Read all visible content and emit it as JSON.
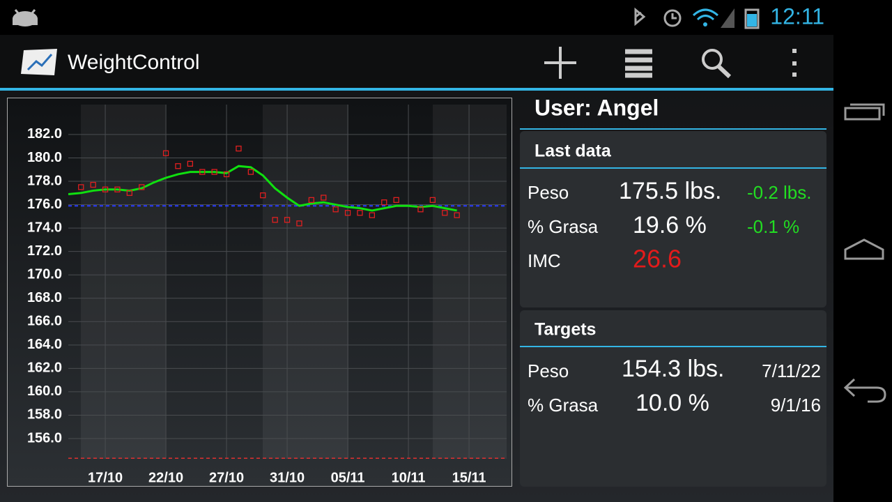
{
  "status_bar": {
    "time": "12:11"
  },
  "action_bar": {
    "title": "WeightControl"
  },
  "chart_data": {
    "type": "line",
    "series": [
      {
        "color": "#10e010",
        "x": [
          -3.05,
          -2,
          -1,
          0,
          1,
          2,
          3,
          4,
          5,
          6,
          7,
          8,
          9,
          10,
          11,
          12,
          13,
          14,
          15,
          16,
          17,
          18,
          19,
          20,
          21,
          22,
          23,
          24,
          25,
          26,
          27,
          28,
          29
        ],
        "values": [
          176.9,
          177.0,
          177.2,
          177.3,
          177.3,
          177.2,
          177.4,
          177.9,
          178.3,
          178.6,
          178.8,
          178.8,
          178.8,
          178.7,
          179.3,
          179.2,
          178.5,
          177.4,
          176.6,
          175.9,
          176.1,
          176.2,
          176.0,
          175.8,
          175.7,
          175.5,
          175.7,
          175.9,
          175.9,
          175.8,
          175.9,
          175.7,
          175.5
        ]
      },
      {
        "type": "scatter",
        "color": "#e02020",
        "x": [
          -2,
          -1,
          0,
          1,
          2,
          3,
          5,
          6,
          7,
          8,
          9,
          10,
          11,
          12,
          13,
          14,
          15,
          16,
          17,
          18,
          19,
          20,
          21,
          22,
          23,
          24,
          26,
          27,
          28,
          29
        ],
        "values": [
          177.5,
          177.7,
          177.3,
          177.3,
          177.0,
          177.5,
          180.4,
          179.3,
          179.5,
          178.8,
          178.8,
          178.6,
          180.8,
          178.8,
          176.8,
          174.7,
          174.7,
          174.4,
          176.4,
          176.6,
          175.6,
          175.3,
          175.3,
          175.1,
          176.2,
          176.4,
          175.6,
          176.4,
          175.3,
          175.1
        ]
      }
    ],
    "reference_lines": [
      {
        "value": 175.9,
        "color": "#2a3cff"
      },
      {
        "value": 154.3,
        "color": "#e03030"
      }
    ],
    "xlim": [
      -3.05,
      33.1
    ],
    "xticks": [
      {
        "value": 0,
        "label": "17/10"
      },
      {
        "value": 5,
        "label": "22/10"
      },
      {
        "value": 10,
        "label": "27/10"
      },
      {
        "value": 15,
        "label": "31/10"
      },
      {
        "value": 20,
        "label": "05/11"
      },
      {
        "value": 25,
        "label": "10/11"
      },
      {
        "value": 30,
        "label": "15/11"
      }
    ],
    "ylim": [
      154.27,
      184.56
    ],
    "yticks": [
      {
        "value": 156,
        "label": "156.0"
      },
      {
        "value": 158,
        "label": "158.0"
      },
      {
        "value": 160,
        "label": "160.0"
      },
      {
        "value": 162,
        "label": "162.0"
      },
      {
        "value": 164,
        "label": "164.0"
      },
      {
        "value": 166,
        "label": "166.0"
      },
      {
        "value": 168,
        "label": "168.0"
      },
      {
        "value": 170,
        "label": "170.0"
      },
      {
        "value": 172,
        "label": "172.0"
      },
      {
        "value": 174,
        "label": "174.0"
      },
      {
        "value": 176,
        "label": "176.0"
      },
      {
        "value": 178,
        "label": "178.0"
      },
      {
        "value": 180,
        "label": "180.0"
      },
      {
        "value": 182,
        "label": "182.0"
      }
    ],
    "grid": true
  },
  "user": "User: Angel",
  "last_data": {
    "title": "Last data",
    "rows": [
      [
        "Peso",
        "175.5 lbs.",
        "-0.2 lbs."
      ],
      [
        "% Grasa",
        "19.6 %",
        "-0.1 %"
      ],
      [
        "IMC",
        "26.6"
      ]
    ]
  },
  "targets": {
    "title": "Targets",
    "rows": [
      [
        "Peso",
        "154.3 lbs.",
        "7/11/22"
      ],
      [
        "% Grasa",
        "10.0 %",
        "9/1/16"
      ]
    ]
  }
}
